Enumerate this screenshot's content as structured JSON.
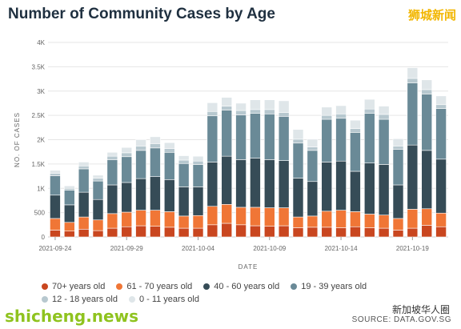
{
  "title": "Number of Community Cases by Age",
  "badge": "狮城新闻",
  "watermark_left": "shicheng.news",
  "watermark_right": "新加坡华人圈",
  "source": "SOURCE: DATA.GOV.SG",
  "colors": {
    "70+": "#c9461f",
    "61-70": "#f07636",
    "40-60": "#364c57",
    "19-39": "#6a8a97",
    "12-18": "#b7c8cf",
    "0-11": "#dfe6e9"
  },
  "chart_data": {
    "type": "bar",
    "stacked": true,
    "xlabel": "DATE",
    "ylabel": "NO. OF CASES",
    "ylim": [
      0,
      4000
    ],
    "yticks": [
      "0",
      "500",
      "1K",
      "1.5K",
      "2K",
      "2.5K",
      "3K",
      "3.5K",
      "4K"
    ],
    "xtick_labels": [
      {
        "index": 0,
        "label": "2021-09-24"
      },
      {
        "index": 5,
        "label": "2021-09-29"
      },
      {
        "index": 10,
        "label": "2021-10-04"
      },
      {
        "index": 15,
        "label": "2021-10-09"
      },
      {
        "index": 20,
        "label": "2021-10-14"
      },
      {
        "index": 25,
        "label": "2021-10-19"
      }
    ],
    "categories": [
      "2021-09-24",
      "2021-09-25",
      "2021-09-26",
      "2021-09-27",
      "2021-09-28",
      "2021-09-29",
      "2021-09-30",
      "2021-10-01",
      "2021-10-02",
      "2021-10-03",
      "2021-10-04",
      "2021-10-05",
      "2021-10-06",
      "2021-10-07",
      "2021-10-08",
      "2021-10-09",
      "2021-10-10",
      "2021-10-11",
      "2021-10-12",
      "2021-10-13",
      "2021-10-14",
      "2021-10-15",
      "2021-10-16",
      "2021-10-17",
      "2021-10-18",
      "2021-10-19",
      "2021-10-20",
      "2021-10-21"
    ],
    "series": [
      {
        "name": "70+ years old",
        "key": "70+",
        "values": [
          140,
          120,
          160,
          130,
          180,
          210,
          230,
          220,
          200,
          180,
          180,
          250,
          280,
          250,
          230,
          220,
          230,
          190,
          200,
          200,
          190,
          210,
          190,
          180,
          140,
          180,
          240,
          210
        ]
      },
      {
        "name": "61 - 70 years old",
        "key": "61-70",
        "values": [
          240,
          180,
          250,
          220,
          300,
          300,
          320,
          330,
          320,
          250,
          260,
          380,
          390,
          360,
          380,
          380,
          370,
          220,
          230,
          330,
          360,
          310,
          280,
          270,
          240,
          390,
          340,
          280
        ]
      },
      {
        "name": "40 - 60 years old",
        "key": "40-60",
        "values": [
          480,
          360,
          510,
          420,
          590,
          610,
          650,
          690,
          660,
          600,
          590,
          910,
          990,
          980,
          1010,
          990,
          970,
          800,
          710,
          1010,
          1010,
          830,
          1050,
          1040,
          690,
          1320,
          1200,
          1110
        ]
      },
      {
        "name": "19 - 39 years old",
        "key": "19-39",
        "values": [
          400,
          300,
          480,
          380,
          520,
          530,
          580,
          590,
          560,
          480,
          460,
          950,
          950,
          920,
          920,
          940,
          910,
          720,
          640,
          880,
          880,
          800,
          1020,
          930,
          730,
          1280,
          1160,
          1040
        ]
      },
      {
        "name": "12 - 18 years old",
        "key": "12-18",
        "values": [
          50,
          40,
          60,
          60,
          70,
          80,
          90,
          90,
          80,
          70,
          70,
          90,
          80,
          90,
          80,
          90,
          80,
          80,
          70,
          80,
          90,
          80,
          90,
          100,
          70,
          90,
          90,
          80
        ]
      },
      {
        "name": "0 - 11 years old",
        "key": "0-11",
        "values": [
          60,
          50,
          80,
          60,
          80,
          110,
          130,
          140,
          120,
          90,
          100,
          180,
          180,
          150,
          200,
          200,
          240,
          200,
          160,
          170,
          170,
          170,
          200,
          170,
          150,
          220,
          200,
          180
        ]
      }
    ]
  }
}
